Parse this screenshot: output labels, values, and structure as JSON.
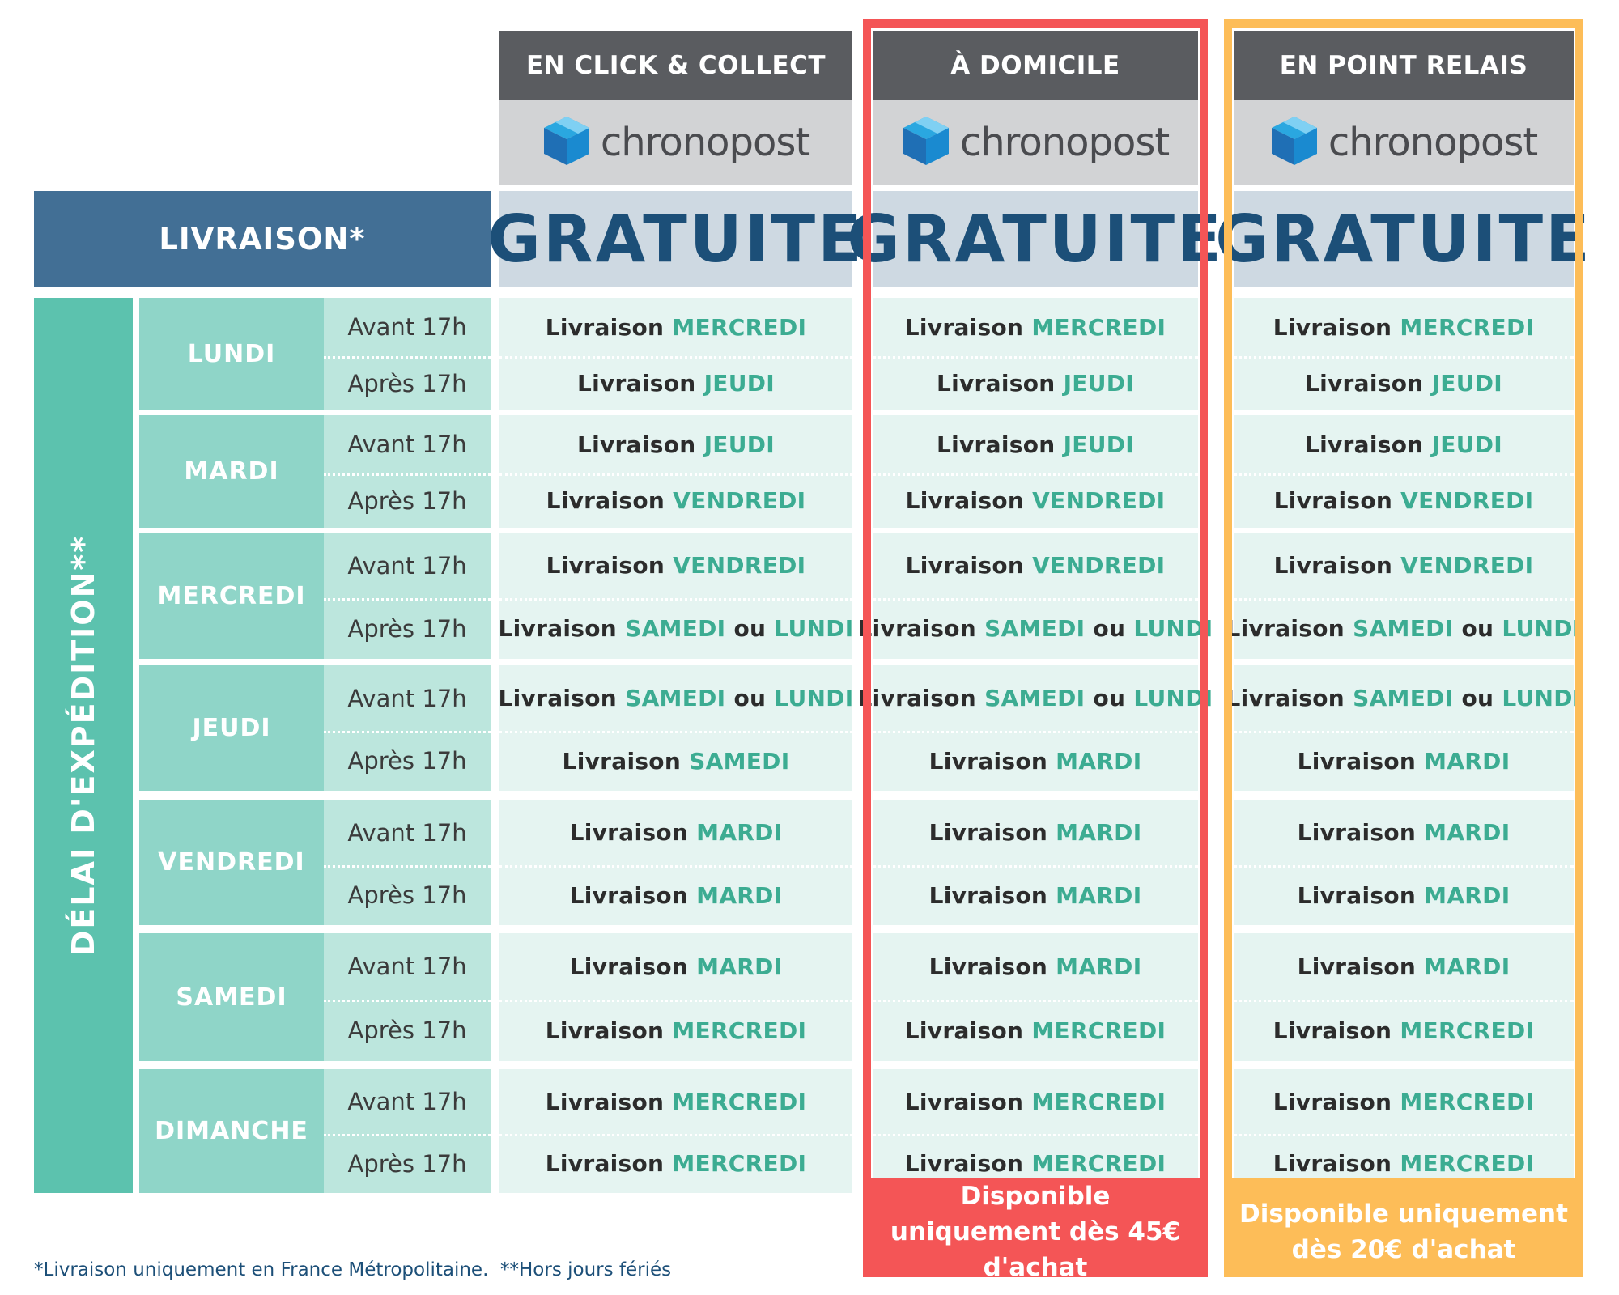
{
  "columns": [
    {
      "header": "EN CLICK & COLLECT",
      "logo": "chronopost",
      "price": "GRATUITE"
    },
    {
      "header": "À DOMICILE",
      "logo": "chronopost",
      "price": "GRATUITE",
      "condition": "Disponible uniquement dès 45€ d'achat"
    },
    {
      "header": "EN POINT RELAIS",
      "logo": "chronopost",
      "price": "GRATUITE",
      "condition": "Disponible uniquement dès 20€ d'achat"
    }
  ],
  "livraison_label": "LIVRAISON*",
  "delai_label": "DÉLAI D'EXPÉDITION**",
  "time_labels": [
    "Avant 17h",
    "Après 17h"
  ],
  "days": [
    {
      "name": "LUNDI"
    },
    {
      "name": "MARDI"
    },
    {
      "name": "MERCREDI"
    },
    {
      "name": "JEUDI"
    },
    {
      "name": "VENDREDI"
    },
    {
      "name": "SAMEDI"
    },
    {
      "name": "DIMANCHE"
    }
  ],
  "entry_prefix": "Livraison",
  "entry_or": "ou",
  "deliveries": [
    [
      [
        [
          "MERCREDI"
        ],
        [
          "JEUDI"
        ]
      ],
      [
        [
          "JEUDI"
        ],
        [
          "VENDREDI"
        ]
      ],
      [
        [
          "VENDREDI"
        ],
        [
          "SAMEDI",
          "LUNDI"
        ]
      ],
      [
        [
          "SAMEDI",
          "LUNDI"
        ],
        [
          "SAMEDI"
        ]
      ],
      [
        [
          "MARDI"
        ],
        [
          "MARDI"
        ]
      ],
      [
        [
          "MARDI"
        ],
        [
          "MERCREDI"
        ]
      ],
      [
        [
          "MERCREDI"
        ],
        [
          "MERCREDI"
        ]
      ]
    ],
    [
      [
        [
          "MERCREDI"
        ],
        [
          "JEUDI"
        ]
      ],
      [
        [
          "JEUDI"
        ],
        [
          "VENDREDI"
        ]
      ],
      [
        [
          "VENDREDI"
        ],
        [
          "SAMEDI",
          "LUNDI"
        ]
      ],
      [
        [
          "SAMEDI",
          "LUNDI"
        ],
        [
          "MARDI"
        ]
      ],
      [
        [
          "MARDI"
        ],
        [
          "MARDI"
        ]
      ],
      [
        [
          "MARDI"
        ],
        [
          "MERCREDI"
        ]
      ],
      [
        [
          "MERCREDI"
        ],
        [
          "MERCREDI"
        ]
      ]
    ],
    [
      [
        [
          "MERCREDI"
        ],
        [
          "JEUDI"
        ]
      ],
      [
        [
          "JEUDI"
        ],
        [
          "VENDREDI"
        ]
      ],
      [
        [
          "VENDREDI"
        ],
        [
          "SAMEDI",
          "LUNDI"
        ]
      ],
      [
        [
          "SAMEDI",
          "LUNDI"
        ],
        [
          "MARDI"
        ]
      ],
      [
        [
          "MARDI"
        ],
        [
          "MARDI"
        ]
      ],
      [
        [
          "MARDI"
        ],
        [
          "MERCREDI"
        ]
      ],
      [
        [
          "MERCREDI"
        ],
        [
          "MERCREDI"
        ]
      ]
    ]
  ],
  "footnote": "*Livraison uniquement en France Métropolitaine.  **Hors jours fériés",
  "colors": {
    "header_grey": "#5a5c60",
    "price_blue": "#1c4f78",
    "teal": "#5cc2ae",
    "accent_green": "#3cac92",
    "red": "#f45556",
    "orange": "#fdbd58"
  }
}
